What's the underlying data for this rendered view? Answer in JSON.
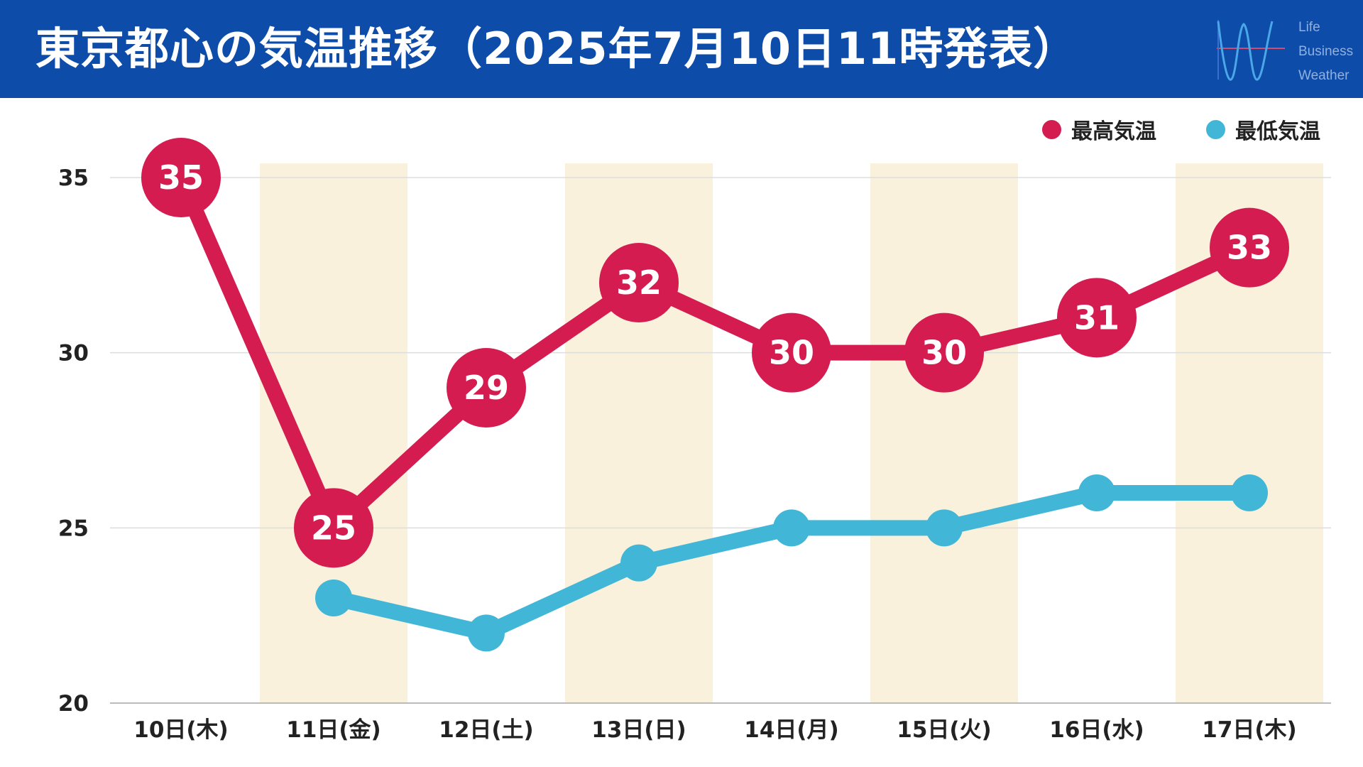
{
  "title": "東京都心の気温推移（2025年7月10日11時発表）",
  "logo": {
    "lines": [
      "Life",
      "Business",
      "Weather"
    ],
    "icon": "waveform-w-icon"
  },
  "colors": {
    "header": "#0d4ca8",
    "high": "#d41c50",
    "low": "#41b6d6",
    "weekendBand": "#faf1dc",
    "grid": "#dddddd"
  },
  "chart_data": {
    "type": "line",
    "categories": [
      "10日(木)",
      "11日(金)",
      "12日(土)",
      "13日(日)",
      "14日(月)",
      "15日(火)",
      "16日(水)",
      "17日(木)"
    ],
    "series": [
      {
        "name": "最高気温",
        "values": [
          35,
          25,
          29,
          32,
          30,
          30,
          31,
          33
        ],
        "data_labels": true
      },
      {
        "name": "最低気温",
        "values": [
          null,
          23,
          22,
          24,
          25,
          25,
          26,
          26
        ],
        "data_labels": false
      }
    ],
    "ylim": [
      20,
      35
    ],
    "yticks": [
      20,
      25,
      30,
      35
    ],
    "highlighted_categories": [
      1,
      3,
      5,
      7
    ],
    "grid": true,
    "legend": "top-right",
    "xlabel": "",
    "ylabel": ""
  }
}
